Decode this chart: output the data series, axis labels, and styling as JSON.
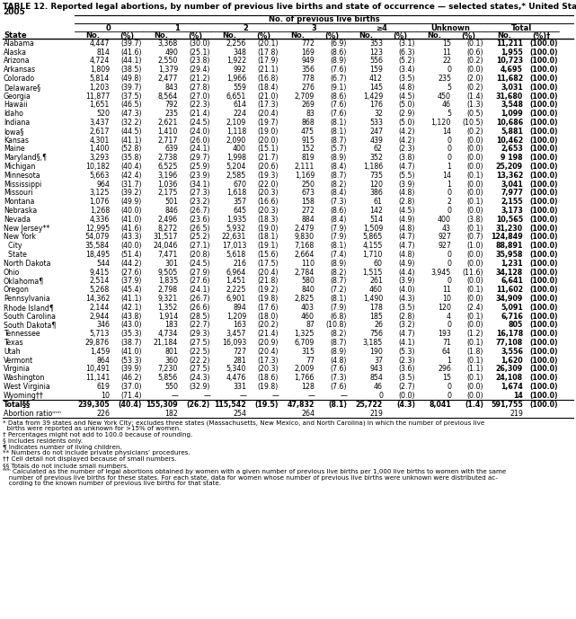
{
  "title_line1": "TABLE 12. Reported legal abortions, by number of previous live births and state of occurrence — selected states,* United States,",
  "title_line2": "2005",
  "col_header_main": "No. of previous live births",
  "state_col_header": "State",
  "rows": [
    [
      "Alabama",
      "4,447",
      "(39.7)",
      "3,368",
      "(30.0)",
      "2,256",
      "(20.1)",
      "772",
      "(6.9)",
      "353",
      "(3.1)",
      "15",
      "(0.1)",
      "11,211",
      "(100.0)"
    ],
    [
      "Alaska",
      "814",
      "(41.6)",
      "490",
      "(25.1)",
      "348",
      "(17.8)",
      "169",
      "(8.6)",
      "123",
      "(6.3)",
      "11",
      "(0.6)",
      "1,955",
      "(100.0)"
    ],
    [
      "Arizona",
      "4,724",
      "(44.1)",
      "2,550",
      "(23.8)",
      "1,922",
      "(17.9)",
      "949",
      "(8.9)",
      "556",
      "(5.2)",
      "22",
      "(0.2)",
      "10,723",
      "(100.0)"
    ],
    [
      "Arkansas",
      "1,809",
      "(38.5)",
      "1,379",
      "(29.4)",
      "992",
      "(21.1)",
      "356",
      "(7.6)",
      "159",
      "(3.4)",
      "0",
      "(0.0)",
      "4,695",
      "(100.0)"
    ],
    [
      "Colorado",
      "5,814",
      "(49.8)",
      "2,477",
      "(21.2)",
      "1,966",
      "(16.8)",
      "778",
      "(6.7)",
      "412",
      "(3.5)",
      "235",
      "(2.0)",
      "11,682",
      "(100.0)"
    ],
    [
      "Delaware§",
      "1,203",
      "(39.7)",
      "843",
      "(27.8)",
      "559",
      "(18.4)",
      "276",
      "(9.1)",
      "145",
      "(4.8)",
      "5",
      "(0.2)",
      "3,031",
      "(100.0)"
    ],
    [
      "Georgia",
      "11,877",
      "(37.5)",
      "8,564",
      "(27.0)",
      "6,651",
      "(21.0)",
      "2,709",
      "(8.6)",
      "1,429",
      "(4.5)",
      "450",
      "(1.4)",
      "31,680",
      "(100.0)"
    ],
    [
      "Hawaii",
      "1,651",
      "(46.5)",
      "792",
      "(22.3)",
      "614",
      "(17.3)",
      "269",
      "(7.6)",
      "176",
      "(5.0)",
      "46",
      "(1.3)",
      "3,548",
      "(100.0)"
    ],
    [
      "Idaho",
      "520",
      "(47.3)",
      "235",
      "(21.4)",
      "224",
      "(20.4)",
      "83",
      "(7.6)",
      "32",
      "(2.9)",
      "5",
      "(0.5)",
      "1,099",
      "(100.0)"
    ],
    [
      "Indiana",
      "3,437",
      "(32.2)",
      "2,621",
      "(24.5)",
      "2,109",
      "(19.7)",
      "868",
      "(8.1)",
      "533",
      "(5.0)",
      "1,120",
      "(10.5)",
      "10,686",
      "(100.0)"
    ],
    [
      "Iowa§",
      "2,617",
      "(44.5)",
      "1,410",
      "(24.0)",
      "1,118",
      "(19.0)",
      "475",
      "(8.1)",
      "247",
      "(4.2)",
      "14",
      "(0.2)",
      "5,881",
      "(100.0)"
    ],
    [
      "Kansas",
      "4,301",
      "(41.1)",
      "2,717",
      "(26.0)",
      "2,090",
      "(20.0)",
      "915",
      "(8.7)",
      "439",
      "(4.2)",
      "0",
      "(0.0)",
      "10,462",
      "(100.0)"
    ],
    [
      "Maine",
      "1,400",
      "(52.8)",
      "639",
      "(24.1)",
      "400",
      "(15.1)",
      "152",
      "(5.7)",
      "62",
      "(2.3)",
      "0",
      "(0.0)",
      "2,653",
      "(100.0)"
    ],
    [
      "Maryland§,¶",
      "3,293",
      "(35.8)",
      "2,738",
      "(29.7)",
      "1,998",
      "(21.7)",
      "819",
      "(8.9)",
      "352",
      "(3.8)",
      "0",
      "(0.0)",
      "9 198",
      "(100.0)"
    ],
    [
      "Michigan",
      "10,182",
      "(40.4)",
      "6,525",
      "(25.9)",
      "5,204",
      "(20.6)",
      "2,111",
      "(8.4)",
      "1,186",
      "(4.7)",
      "1",
      "(0.0)",
      "25,209",
      "(100.0)"
    ],
    [
      "Minnesota",
      "5,663",
      "(42.4)",
      "3,196",
      "(23.9)",
      "2,585",
      "(19.3)",
      "1,169",
      "(8.7)",
      "735",
      "(5.5)",
      "14",
      "(0.1)",
      "13,362",
      "(100.0)"
    ],
    [
      "Mississippi",
      "964",
      "(31.7)",
      "1,036",
      "(34.1)",
      "670",
      "(22.0)",
      "250",
      "(8.2)",
      "120",
      "(3.9)",
      "1",
      "(0.0)",
      "3,041",
      "(100.0)"
    ],
    [
      "Missouri",
      "3,125",
      "(39.2)",
      "2,175",
      "(27.3)",
      "1,618",
      "(20.3)",
      "673",
      "(8.4)",
      "386",
      "(4.8)",
      "0",
      "(0.0)",
      "7,977",
      "(100.0)"
    ],
    [
      "Montana",
      "1,076",
      "(49.9)",
      "501",
      "(23.2)",
      "357",
      "(16.6)",
      "158",
      "(7.3)",
      "61",
      "(2.8)",
      "2",
      "(0.1)",
      "2,155",
      "(100.0)"
    ],
    [
      "Nebraska",
      "1,268",
      "(40.0)",
      "846",
      "(26.7)",
      "645",
      "(20.3)",
      "272",
      "(8.6)",
      "142",
      "(4.5)",
      "0",
      "(0.0)",
      "3,173",
      "(100.0)"
    ],
    [
      "Nevada",
      "4,336",
      "(41.0)",
      "2,496",
      "(23.6)",
      "1,935",
      "(18.3)",
      "884",
      "(8.4)",
      "514",
      "(4.9)",
      "400",
      "(3.8)",
      "10,565",
      "(100.0)"
    ],
    [
      "New Jersey**",
      "12,995",
      "(41.6)",
      "8,272",
      "(26.5)",
      "5,932",
      "(19.0)",
      "2,479",
      "(7.9)",
      "1,509",
      "(4.8)",
      "43",
      "(0.1)",
      "31,230",
      "(100.0)"
    ],
    [
      "New York",
      "54,079",
      "(43.3)",
      "31,517",
      "(25.2)",
      "22,631",
      "(18.1)",
      "9,830",
      "(7.9)",
      "5,865",
      "(4.7)",
      "927",
      "(0.7)",
      "124,849",
      "(100.0)"
    ],
    [
      "  City",
      "35,584",
      "(40.0)",
      "24,046",
      "(27.1)",
      "17,013",
      "(19.1)",
      "7,168",
      "(8.1)",
      "4,155",
      "(4.7)",
      "927",
      "(1.0)",
      "88,891",
      "(100.0)"
    ],
    [
      "  State",
      "18,495",
      "(51.4)",
      "7,471",
      "(20.8)",
      "5,618",
      "(15.6)",
      "2,664",
      "(7.4)",
      "1,710",
      "(4.8)",
      "0",
      "(0.0)",
      "35,958",
      "(100.0)"
    ],
    [
      "North Dakota",
      "544",
      "(44.2)",
      "301",
      "(24.5)",
      "216",
      "(17.5)",
      "110",
      "(8.9)",
      "60",
      "(4.9)",
      "0",
      "(0.0)",
      "1,231",
      "(100.0)"
    ],
    [
      "Ohio",
      "9,415",
      "(27.6)",
      "9,505",
      "(27.9)",
      "6,964",
      "(20.4)",
      "2,784",
      "(8.2)",
      "1,515",
      "(4.4)",
      "3,945",
      "(11.6)",
      "34,128",
      "(100.0)"
    ],
    [
      "Oklahoma¶",
      "2,514",
      "(37.9)",
      "1,835",
      "(27.6)",
      "1,451",
      "(21.8)",
      "580",
      "(8.7)",
      "261",
      "(3.9)",
      "0",
      "(0.0)",
      "6,641",
      "(100.0)"
    ],
    [
      "Oregon",
      "5,268",
      "(45.4)",
      "2,798",
      "(24.1)",
      "2,225",
      "(19.2)",
      "840",
      "(7.2)",
      "460",
      "(4.0)",
      "11",
      "(0.1)",
      "11,602",
      "(100.0)"
    ],
    [
      "Pennsylvania",
      "14,362",
      "(41.1)",
      "9,321",
      "(26.7)",
      "6,901",
      "(19.8)",
      "2,825",
      "(8.1)",
      "1,490",
      "(4.3)",
      "10",
      "(0.0)",
      "34,909",
      "(100.0)"
    ],
    [
      "Rhode Island¶",
      "2,144",
      "(42.1)",
      "1,352",
      "(26.6)",
      "894",
      "(17.6)",
      "403",
      "(7.9)",
      "178",
      "(3.5)",
      "120",
      "(2.4)",
      "5,091",
      "(100.0)"
    ],
    [
      "South Carolina",
      "2,944",
      "(43.8)",
      "1,914",
      "(28.5)",
      "1,209",
      "(18.0)",
      "460",
      "(6.8)",
      "185",
      "(2.8)",
      "4",
      "(0.1)",
      "6,716",
      "(100.0)"
    ],
    [
      "South Dakota¶",
      "346",
      "(43.0)",
      "183",
      "(22.7)",
      "163",
      "(20.2)",
      "87",
      "(10.8)",
      "26",
      "(3.2)",
      "0",
      "(0.0)",
      "805",
      "(100.0)"
    ],
    [
      "Tennessee",
      "5,713",
      "(35.3)",
      "4,734",
      "(29.3)",
      "3,457",
      "(21.4)",
      "1,325",
      "(8.2)",
      "756",
      "(4.7)",
      "193",
      "(1.2)",
      "16,178",
      "(100.0)"
    ],
    [
      "Texas",
      "29,876",
      "(38.7)",
      "21,184",
      "(27.5)",
      "16,093",
      "(20.9)",
      "6,709",
      "(8.7)",
      "3,185",
      "(4.1)",
      "71",
      "(0.1)",
      "77,108",
      "(100.0)"
    ],
    [
      "Utah",
      "1,459",
      "(41.0)",
      "801",
      "(22.5)",
      "727",
      "(20.4)",
      "315",
      "(8.9)",
      "190",
      "(5.3)",
      "64",
      "(1.8)",
      "3,556",
      "(100.0)"
    ],
    [
      "Vermont",
      "864",
      "(53.3)",
      "360",
      "(22.2)",
      "281",
      "(17.3)",
      "77",
      "(4.8)",
      "37",
      "(2.3)",
      "1",
      "(0.1)",
      "1,620",
      "(100.0)"
    ],
    [
      "Virginia",
      "10,491",
      "(39.9)",
      "7,230",
      "(27.5)",
      "5,340",
      "(20.3)",
      "2,009",
      "(7.6)",
      "943",
      "(3.6)",
      "296",
      "(1.1)",
      "26,309",
      "(100.0)"
    ],
    [
      "Washington",
      "11,141",
      "(46.2)",
      "5,856",
      "(24.3)",
      "4,476",
      "(18.6)",
      "1,766",
      "(7.3)",
      "854",
      "(3.5)",
      "15",
      "(0.1)",
      "24,108",
      "(100.0)"
    ],
    [
      "West Virginia",
      "619",
      "(37.0)",
      "550",
      "(32.9)",
      "331",
      "(19.8)",
      "128",
      "(7.6)",
      "46",
      "(2.7)",
      "0",
      "(0.0)",
      "1,674",
      "(100.0)"
    ],
    [
      "Wyoming††",
      "10",
      "(71.4)",
      "—",
      "—",
      "—",
      "—",
      "—",
      "—",
      "0",
      "(0.0)",
      "0",
      "(0.0)",
      "14",
      "(100.0)"
    ]
  ],
  "total_row": [
    "Total§§",
    "239,305",
    "(40.4)",
    "155,309",
    "(26.2)",
    "115,542",
    "(19.5)",
    "47,832",
    "(8.1)",
    "25,722",
    "(4.3)",
    "8,041",
    "(1.4)",
    "591,755",
    "(100.0)"
  ],
  "abortion_ratio_label": "Abortion ratioᵐᵐ",
  "abortion_ratio_vals": [
    "226",
    "182",
    "254",
    "264",
    "219",
    "219"
  ],
  "footnotes": [
    "* Data from 39 states and New York City; excludes three states (Massachusetts, New Mexico, and North Carolina) in which the number of previous live",
    "  births were reported as unknown for >15% of women.",
    "† Percentages might not add to 100.0 because of rounding.",
    "§ Includes residents only.",
    "¶ Indicates number of living children.",
    "** Numbers do not include private physicians’ procedures.",
    "†† Cell detail not displayed because of small numbers.",
    "§§ Totals do not include small numbers.",
    "ᵐᵐ Calculated as the number of legal abortions obtained by women with a given number of previous live births per 1,000 live births to women with the same",
    "   number of previous live births for these states. For each state, data for women whose number of previous live births were unknown were distributed ac-",
    "   cording to the known number of previous live births for that state."
  ],
  "title_fontsize": 6.5,
  "header_fontsize": 6.0,
  "cell_fontsize": 5.7,
  "footnote_fontsize": 5.1
}
